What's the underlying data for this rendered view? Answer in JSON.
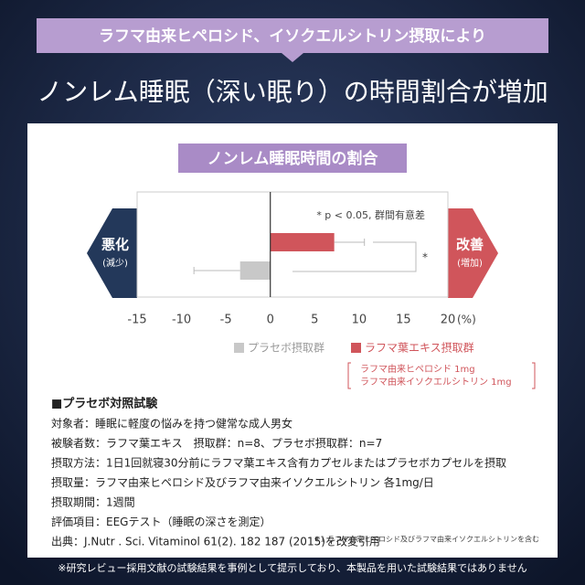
{
  "header": {
    "banner": "ラフマ由来ヒペロシド、イソクエルシトリン摂取により",
    "headline": "ノンレム睡眠（深い眠り）の時間割合が増加"
  },
  "chart_data": {
    "type": "bar",
    "orientation": "horizontal",
    "title": "ノンレム睡眠時間の割合",
    "annotation": "* p < 0.05, 群間有意差",
    "significance": "*",
    "left_label": "悪化",
    "left_sublabel": "(減少)",
    "right_label": "改善",
    "right_sublabel": "(増加)",
    "x_unit": "(%)",
    "categories": [
      null
    ],
    "series": [
      {
        "name": "プラセボ摂取群",
        "color": "#c8c8c8",
        "values": [
          -3.4
        ],
        "errors": [
          5.2
        ]
      },
      {
        "name": "ラフマ葉エキス摂取群",
        "color": "#d0555b",
        "values": [
          7.2
        ],
        "errors": [
          3.4
        ]
      }
    ],
    "series_note": [
      "ラフマ由来ヒペロシド 1mg",
      "ラフマ由来イソクエルシトリン 1mg"
    ],
    "xlim": [
      -15,
      20
    ],
    "xticks": [
      -15,
      -10,
      -5,
      0,
      5,
      10,
      15,
      20
    ],
    "grid": false
  },
  "study": {
    "heading": "■プラセボ対照試験",
    "lines": [
      "対象者：睡眠に軽度の悩みを持つ健常な成人男女",
      "被験者数：ラフマ葉エキス　摂取群：n=8、プラセボ摂取群：n=7",
      "摂取方法：1日1回就寝30分前にラフマ葉エキス含有カプセルまたはプラセボカプセルを摂取",
      "摂取量：ラフマ由来ヒペロシド及びラフマ由来イソクエルシトリン 各1mg/日",
      "摂取期間：1週間",
      "評価項目：EEGテスト（睡眠の深さを測定）",
      "出典：J.Nutr . Sci. Vitaminol 61(2). 182 187 (2015)を改変引用"
    ],
    "footnote": "※1 ラフマ由来ヒペロシド及びラフマ由来イソクエルシトリンを含む"
  },
  "disclaimer": "※研究レビュー採用文献の試験結果を事例として提示しており、本製品を用いた試験結果ではありません"
}
